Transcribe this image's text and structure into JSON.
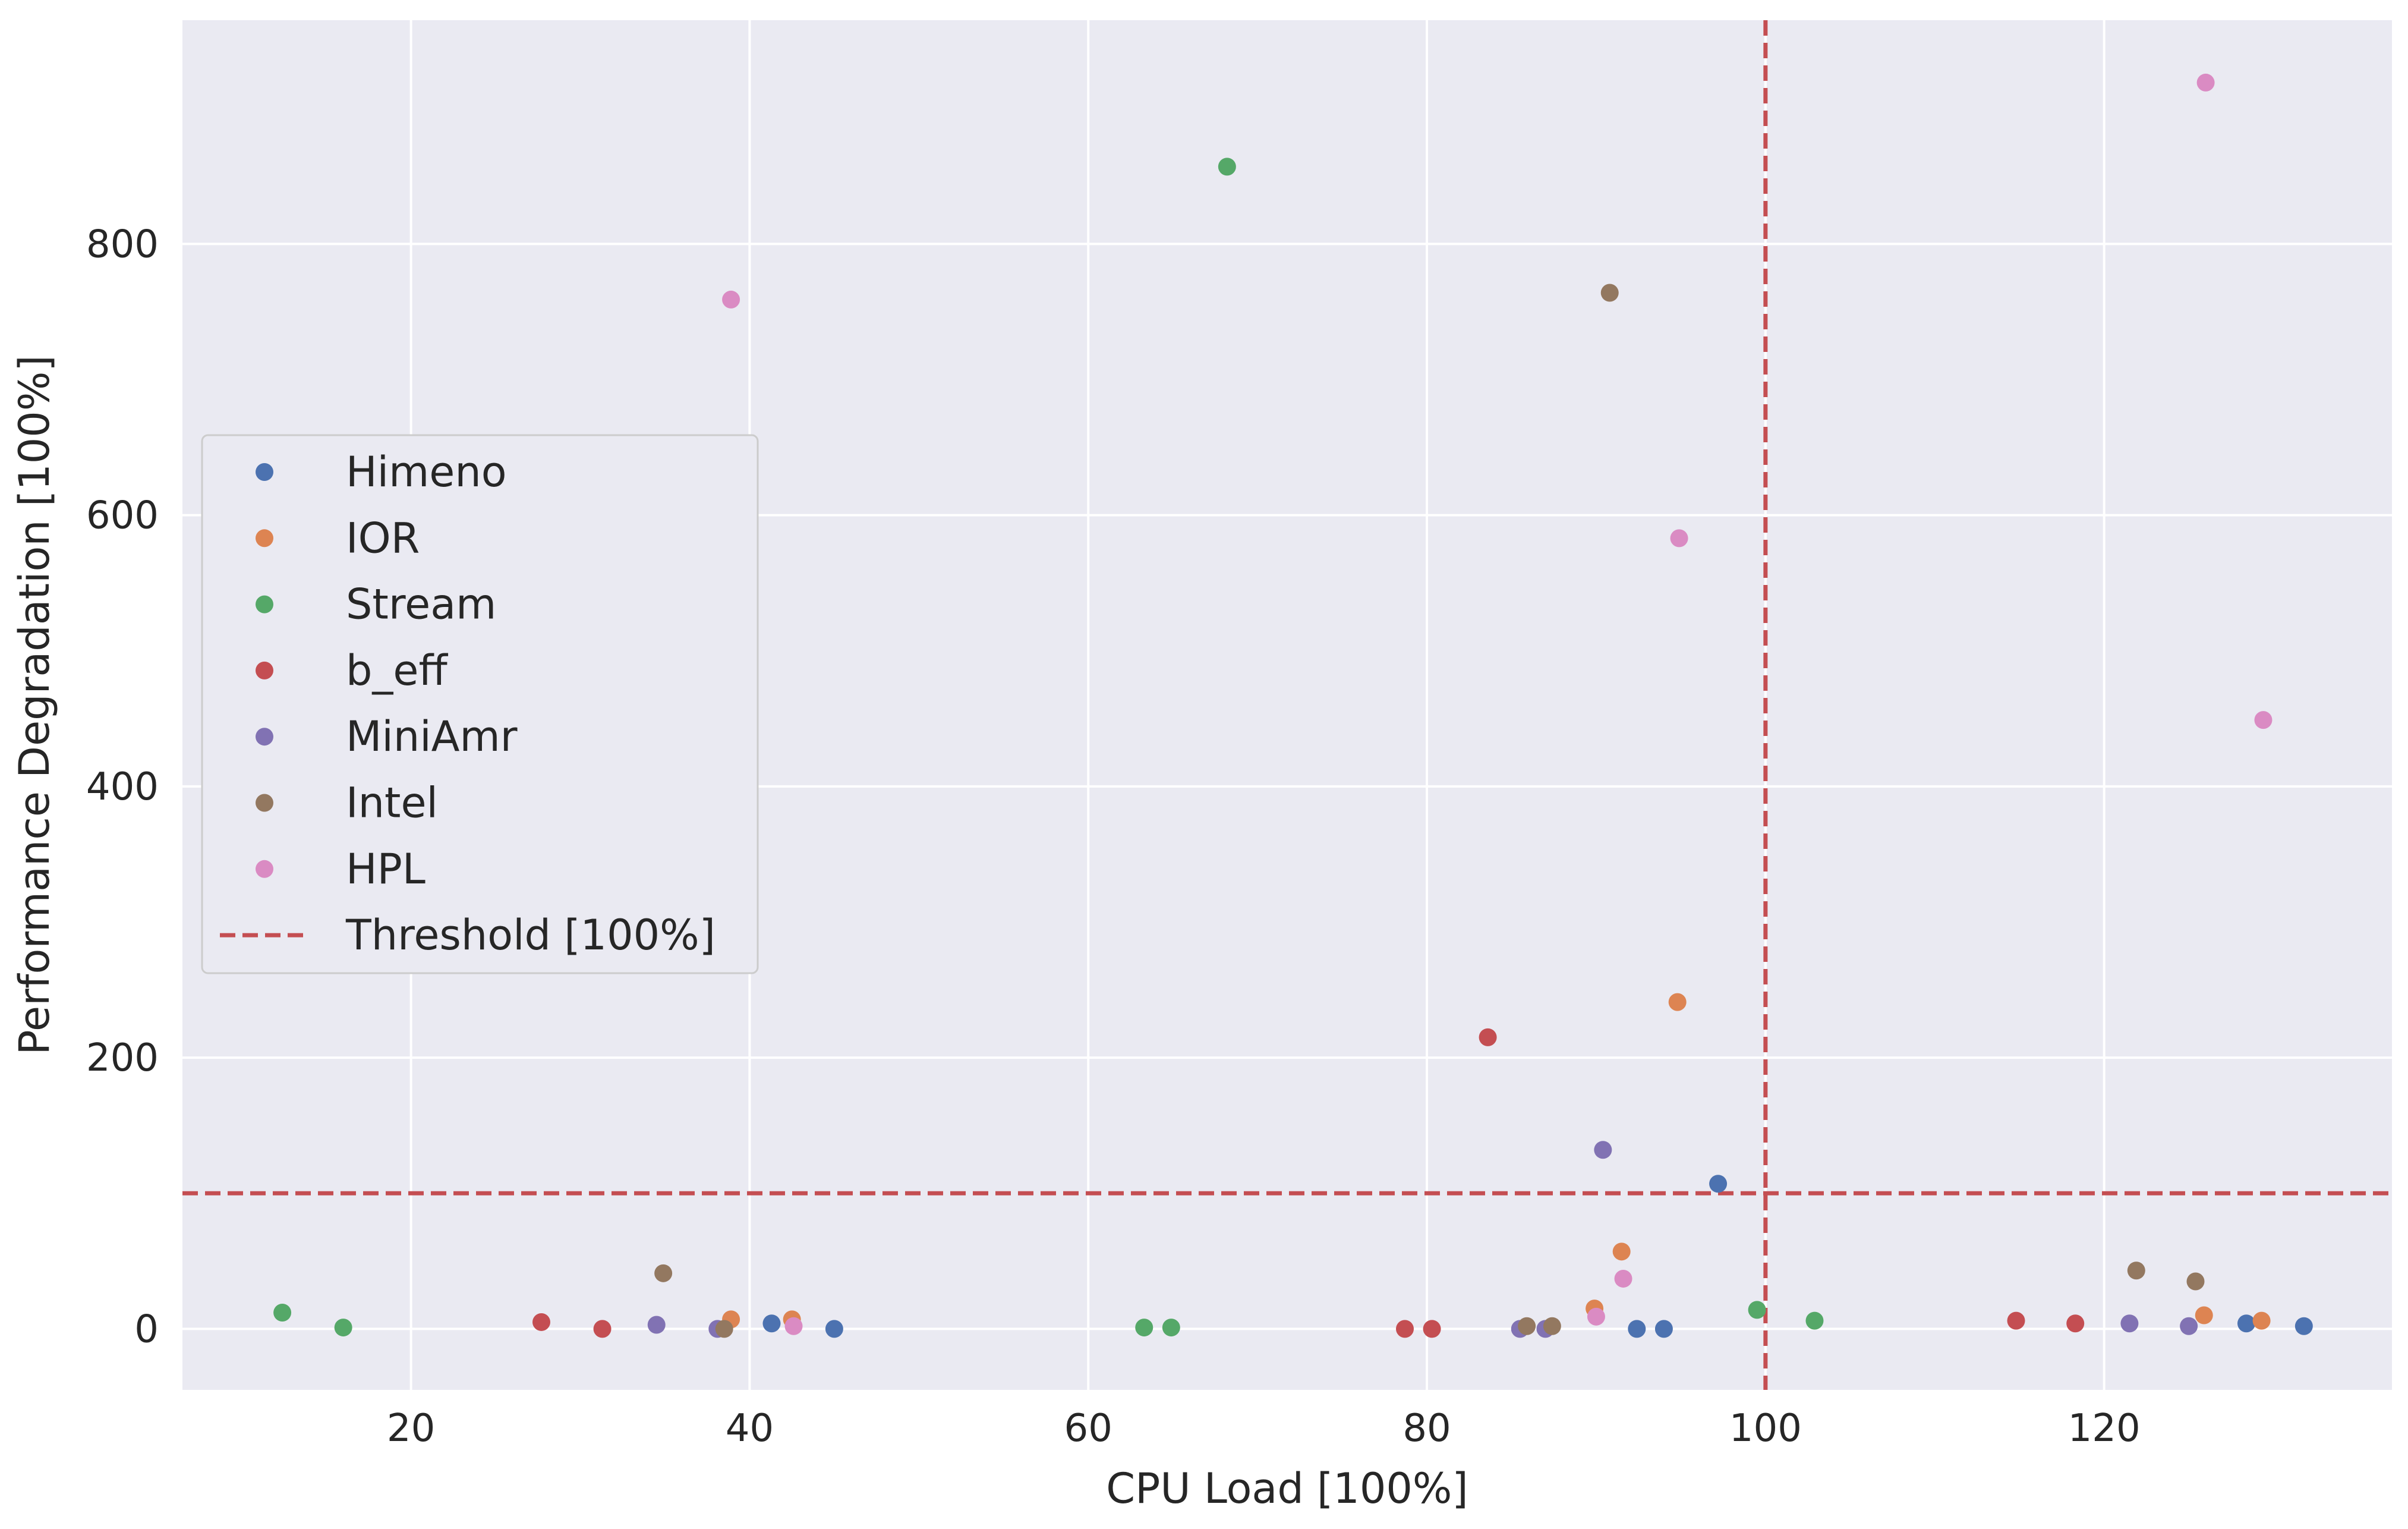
{
  "chart_data": {
    "type": "scatter",
    "title": "",
    "xlabel": "CPU Load [100%]",
    "ylabel": "Performance Degradation [100%]",
    "xlim": [
      6.5,
      137
    ],
    "ylim": [
      -45,
      965
    ],
    "xticks": [
      20,
      40,
      60,
      80,
      100,
      120
    ],
    "yticks": [
      0,
      200,
      400,
      600,
      800
    ],
    "grid": true,
    "legend_position": "center-left",
    "threshold": {
      "label": "Threshold [100%]",
      "x": 100,
      "y": 100,
      "color": "#c44e52",
      "style": "dashed"
    },
    "series": [
      {
        "name": "Himeno",
        "color": "#4c72b0",
        "x": [
          41.3,
          45.0,
          92.4,
          94.0,
          97.2,
          128.4,
          131.8
        ],
        "y": [
          4,
          0,
          0,
          0,
          107,
          4,
          2
        ]
      },
      {
        "name": "IOR",
        "color": "#dd8452",
        "x": [
          38.9,
          42.5,
          89.9,
          91.5,
          94.8,
          125.9,
          129.3
        ],
        "y": [
          7,
          7,
          15,
          57,
          241,
          10,
          6
        ]
      },
      {
        "name": "Stream",
        "color": "#55a868",
        "x": [
          12.4,
          16.0,
          63.3,
          64.9,
          68.2,
          99.5,
          102.9
        ],
        "y": [
          12,
          1,
          1,
          1,
          857,
          14,
          6
        ]
      },
      {
        "name": "b_eff",
        "color": "#c44e52",
        "x": [
          27.7,
          31.3,
          78.7,
          80.3,
          83.6,
          114.8,
          118.3
        ],
        "y": [
          5,
          0,
          0,
          0,
          215,
          6,
          4
        ]
      },
      {
        "name": "MiniAmr",
        "color": "#8172b3",
        "x": [
          34.5,
          38.1,
          85.5,
          87.0,
          90.4,
          121.5,
          125.0
        ],
        "y": [
          3,
          0,
          0,
          0,
          132,
          4,
          2
        ]
      },
      {
        "name": "Intel",
        "color": "#937860",
        "x": [
          34.9,
          38.5,
          85.9,
          87.4,
          90.8,
          121.9,
          125.4
        ],
        "y": [
          41,
          0,
          2,
          2,
          764,
          43,
          35
        ]
      },
      {
        "name": "HPL",
        "color": "#da8bc3",
        "x": [
          38.9,
          42.6,
          90.0,
          91.6,
          94.9,
          126.0,
          129.4
        ],
        "y": [
          759,
          2,
          9,
          37,
          583,
          919,
          449
        ]
      }
    ]
  }
}
